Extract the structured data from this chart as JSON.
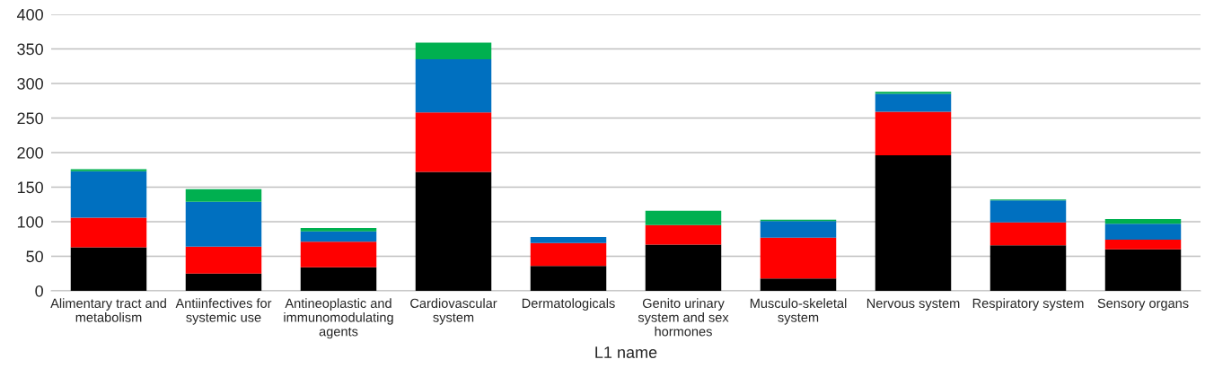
{
  "chart_data": {
    "type": "bar",
    "stacked": true,
    "xlabel": "L1 name",
    "categories": [
      "Alimentary tract and metabolism",
      "Antiinfectives for systemic use",
      "Antineoplastic and immunomodulating agents",
      "Cardiovascular system",
      "Dermatologicals",
      "Genito urinary system and sex hormones",
      "Musculo-skeletal system",
      "Nervous system",
      "Respiratory system",
      "Sensory organs"
    ],
    "series": [
      {
        "color": "#000000",
        "values": [
          63,
          25,
          34,
          172,
          36,
          67,
          18,
          196,
          66,
          60
        ]
      },
      {
        "color": "#ff0000",
        "values": [
          43,
          39,
          37,
          86,
          33,
          28,
          59,
          63,
          33,
          14
        ]
      },
      {
        "color": "#0070c0",
        "values": [
          67,
          65,
          15,
          77,
          9,
          null,
          24,
          26,
          32,
          23
        ]
      },
      {
        "color": "#00b050",
        "values": [
          3,
          18,
          5,
          24,
          null,
          21,
          2,
          3,
          1,
          7
        ]
      }
    ],
    "ylim": [
      0,
      400
    ],
    "yticks": [
      0,
      50,
      100,
      150,
      200,
      250,
      300,
      350,
      400
    ],
    "grid": "y"
  }
}
